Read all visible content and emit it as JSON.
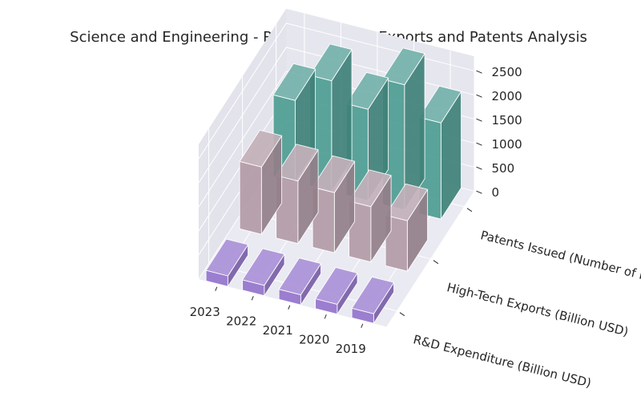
{
  "chart_data": {
    "type": "bar3d",
    "title": "Science and Engineering - R&D, High-Tech Exports and Patents Analysis",
    "categories": [
      "2023",
      "2022",
      "2021",
      "2020",
      "2019"
    ],
    "series": [
      {
        "name": "R&D Expenditure (Billion USD)",
        "color": "#9575cd",
        "values": [
          220,
          215,
          210,
          205,
          200
        ]
      },
      {
        "name": "High-Tech Exports (Billion USD)",
        "color": "#b39ba7",
        "values": [
          1400,
          1300,
          1250,
          1150,
          1050
        ]
      },
      {
        "name": "Patents Issued (Number of Patents)",
        "color": "#4e9e93",
        "values": [
          1700,
          2300,
          1900,
          2600,
          2000
        ]
      }
    ],
    "zlim": [
      0,
      2500
    ],
    "zticks": [
      0,
      500,
      1000,
      1500,
      2000,
      2500
    ],
    "grid": true
  }
}
